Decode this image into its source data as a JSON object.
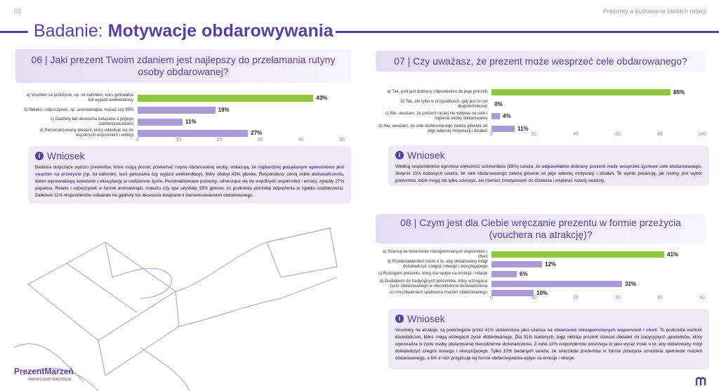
{
  "header": {
    "page_number": "03",
    "section": "Prezenty a budowanie bliskich relacji",
    "title_prefix": "Badanie:",
    "title": "Motywacje obdarowywania"
  },
  "chart_data": [
    {
      "type": "bar",
      "orientation": "horizontal",
      "title": "06 | Jaki prezent Twoim zdaniem jest najlepszy do przełamania rutyny osoby obdarowanej?",
      "categories": [
        "a) Voucher na przeżycie, np. lot balonem, kurs gotowania lub wyjazd weekendowy",
        "b) Relaks i odpoczynek, np. aromaterapia, masaż czy SPA",
        "c) Gadżety lub akcesoria związane z jej/jego zainteresowaniami",
        "d) Personalizowany prezent, który odwołuje się do wspólnych wspomnień i emocji"
      ],
      "values": [
        43,
        19,
        11,
        27
      ],
      "value_labels": [
        "43%",
        "19%",
        "11%",
        "27%"
      ],
      "colors": [
        "#8dc63f",
        "#a99bd6",
        "#a99bd6",
        "#a99bd6"
      ],
      "xlim": [
        0,
        50
      ],
      "xticks": [
        0,
        10,
        20,
        30,
        40,
        50
      ]
    },
    {
      "type": "bar",
      "orientation": "horizontal",
      "title": "07 | Czy uważasz, że prezent może wesprzeć cele obdarowanego?",
      "categories": [
        "a) Tak, jeśli jest dobrany odpowiednio do jego potrzeb",
        "b) Tak, ale tylko w przypadkach, gdy jest to cel długoterminowy",
        "c) Nie, uważam, że prezent raczej nie wpływa na cele i dążenia osoby obdarowanej",
        "d) Nie, uważam, że cele obdarowanego zależą głównie od jego własnej motywacji i działań"
      ],
      "values": [
        85,
        0,
        4,
        11
      ],
      "value_labels": [
        "85%",
        "0%",
        "4%",
        "11%"
      ],
      "colors": [
        "#8dc63f",
        "#a99bd6",
        "#a99bd6",
        "#a99bd6"
      ],
      "xlim": [
        0,
        100
      ],
      "xticks": [
        0,
        20,
        40,
        60,
        80,
        100
      ]
    },
    {
      "type": "bar",
      "orientation": "horizontal",
      "title": "08 | Czym jest dla Ciebie wręczanie prezentu w formie przeżycia (vouchera na atrakcję)?",
      "categories": [
        "a) Szansą na stworzenie niezapomnianych wspomnień i chwil",
        "b) Przedstawieniem troski o to, aby obdarowany mógł doświadczyć czegoś nowego i ekscytującego",
        "c) Rodzajem prezentu, który ma wpływ na emocje i relacje",
        "d) Dodatkiem do tradycyjnych prezentów, który wzbogaca życie obdarowanego w niecodzienne doświadczenia",
        "e) Umożliwieniem spełnienia marzeń obdarowanego"
      ],
      "values": [
        41,
        12,
        6,
        31,
        10
      ],
      "value_labels": [
        "41%",
        "12%",
        "6%",
        "31%",
        "10%"
      ],
      "colors": [
        "#8dc63f",
        "#a99bd6",
        "#a99bd6",
        "#a99bd6",
        "#a99bd6"
      ],
      "xlim": [
        0,
        50
      ],
      "xticks": [
        0,
        10,
        20,
        30,
        40,
        50
      ]
    }
  ],
  "conclusions": [
    {
      "heading": "Wniosek",
      "parts": [
        "Badania dotyczące wyboru prezentów, które mogą pomóc przełamać rutynę obdarowanej osoby, wskazują, że ",
        "najbardziej pożądanym upominkiem jest voucher na przeżycie",
        " (np. lot balonem, kurs gotowania czy wyjazd weekendowy), który zdobył 43% głosów.  Respondenci cenią sobie ",
        "doświadczenia, które wprowadzają świeżość i ekscytację w codzienne życie.",
        " Personalizowane prezenty, odnoszące się do wspólnych wspomnień i emocji, zyskały 27% poparcia. Relaks i odpoczynek w formie aromaterapii, masażu czy spa uzyskały 19% głosów, co podkreśla potrzebę odprężenia w zgiełku codzienności. Zaledwie 11% respondentów wskazało na gadżety lub akcesoria związane z zainteresowaniami obdarowanego."
      ]
    },
    {
      "heading": "Wniosek",
      "parts": [
        "Według respondentów ogromna większość uczestników (85%) uważa, że ",
        "odpowiednio dobrany prezent może wesprzeć życiowe cele obdarowanego.",
        " Jedynie 11% badanych uważa, że cele obdarowanego zależą głównie od jego własnej motywacji i działań. Te wyniki pokazują, jak istotny jest wybór prezentów, które mogą nie tylko ucieszyć, ale również zmotywować do działania i wspierać rozwój osobisty."
      ]
    },
    {
      "heading": "Wniosek",
      "parts": [
        "Vouchery na atrakcje, są postrzegane przez 41% uczestników jako ",
        "szansa na stworzenie niezapomnianych wspomnień i chwil",
        ". To podkreśla wartość doświadczeń, które mogą wzbogacić życie obdarowanego. Dla 31% badanych, tego rodzaju prezent stanowi dodatek do tradycyjnych upominków, który wprowadza w życie osoby obdarowanej niecodzienne doświadczenia. Z kolei 12% respondentów postrzega to jako wyraz troski o to, aby obdarowany mógł doświadczyć czegoś nowego i ekscytującego. Tylko 10% badanych uważa, że wręczanie prezentów w formie przeżycia umożliwia spełnienie marzeń obdarowanego, a 6% z nich przypisuje tej formie obdarowywania wpływ na emocje i relacje."
      ]
    }
  ],
  "footer": {
    "logo": "PrezentMarzeń",
    "tagline": "INSPIRUJEMY RADOŚCIĄ"
  }
}
